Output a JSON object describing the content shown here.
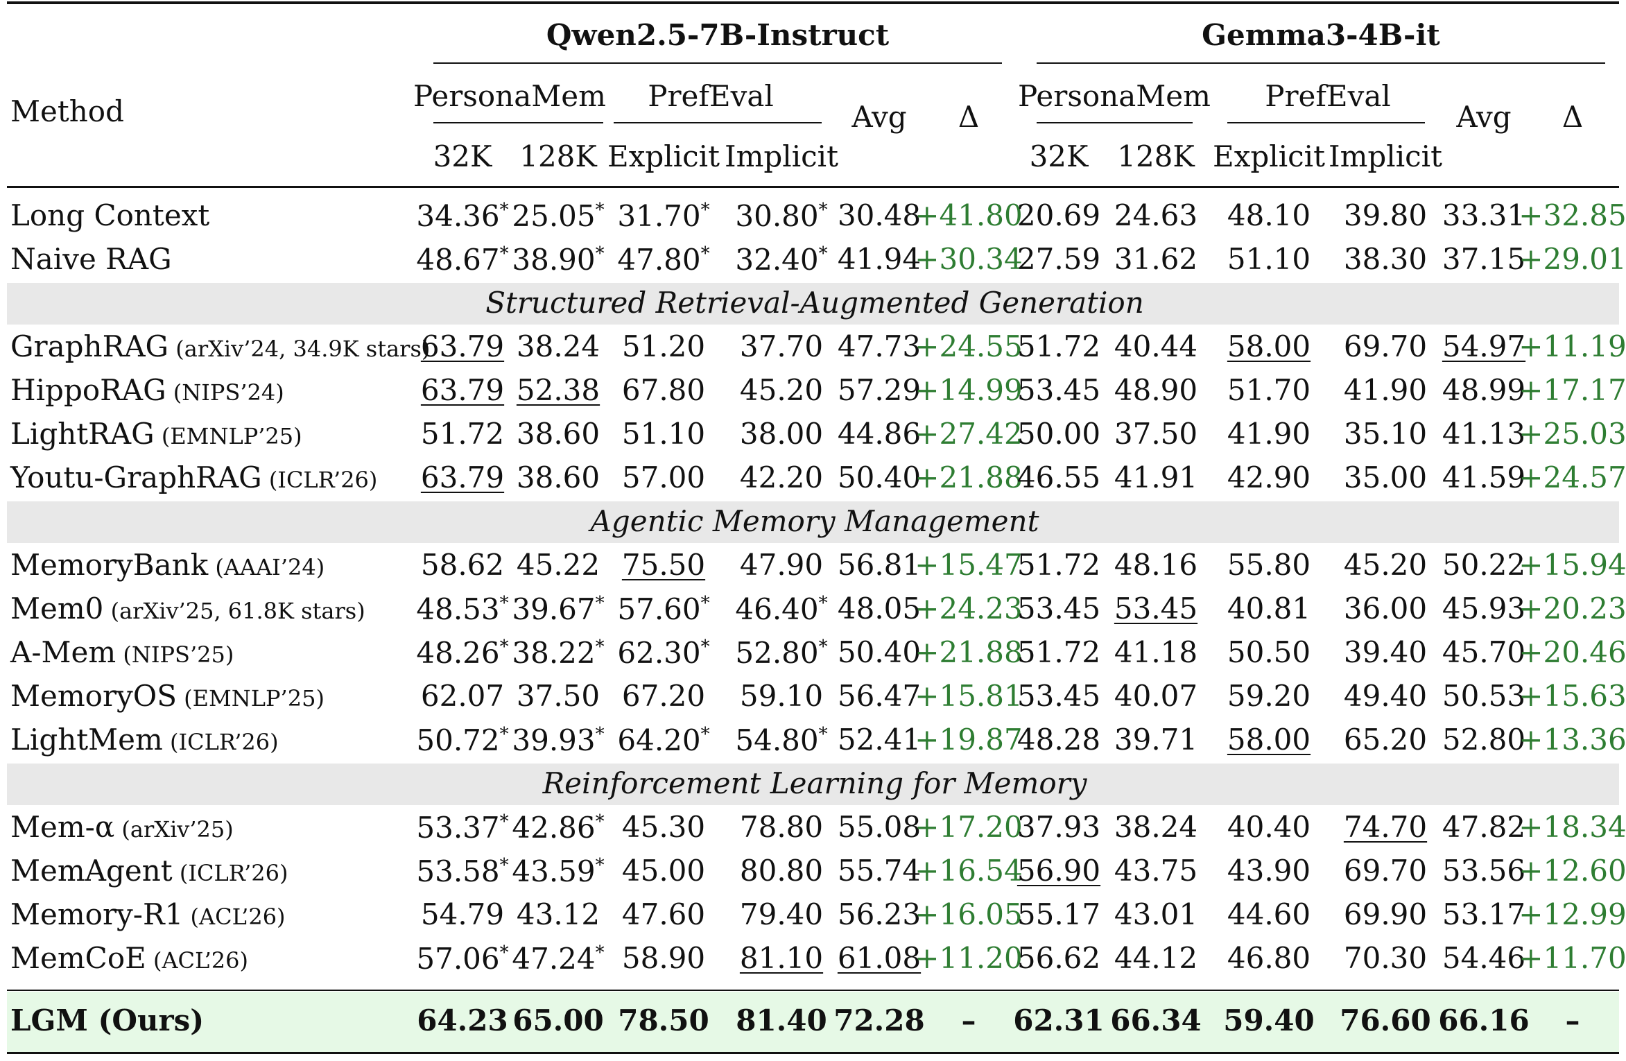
{
  "header": {
    "method": "Method",
    "groups": [
      "Qwen2.5-7B-Instruct",
      "Gemma3-4B-it"
    ],
    "sub_benchmarks": [
      "PersonaMem",
      "PrefEval"
    ],
    "avg": "Avg",
    "delta": "Δ",
    "sub_columns": [
      "32K",
      "128K",
      "Explicit",
      "Implicit"
    ]
  },
  "sections": [
    {
      "title": "",
      "rows": [
        {
          "method": "Long Context",
          "source": "",
          "cells": [
            "34.36",
            "25.05",
            "31.70",
            "30.80",
            "30.48",
            "+41.80",
            "20.69",
            "24.63",
            "48.10",
            "39.80",
            "33.31",
            "+32.85"
          ],
          "star": [
            0,
            1,
            2,
            3
          ],
          "ul": []
        },
        {
          "method": "Naive RAG",
          "source": "",
          "cells": [
            "48.67",
            "38.90",
            "47.80",
            "32.40",
            "41.94",
            "+30.34",
            "27.59",
            "31.62",
            "51.10",
            "38.30",
            "37.15",
            "+29.01"
          ],
          "star": [
            0,
            1,
            2,
            3
          ],
          "ul": []
        }
      ]
    },
    {
      "title": "Structured Retrieval-Augmented Generation",
      "rows": [
        {
          "method": "GraphRAG",
          "source": "(arXiv’24, 34.9K stars)",
          "cells": [
            "63.79",
            "38.24",
            "51.20",
            "37.70",
            "47.73",
            "+24.55",
            "51.72",
            "40.44",
            "58.00",
            "69.70",
            "54.97",
            "+11.19"
          ],
          "star": [],
          "ul": [
            0,
            8,
            10
          ]
        },
        {
          "method": "HippoRAG",
          "source": "(NIPS’24)",
          "cells": [
            "63.79",
            "52.38",
            "67.80",
            "45.20",
            "57.29",
            "+14.99",
            "53.45",
            "48.90",
            "51.70",
            "41.90",
            "48.99",
            "+17.17"
          ],
          "star": [],
          "ul": [
            0,
            1
          ]
        },
        {
          "method": "LightRAG",
          "source": "(EMNLP’25)",
          "cells": [
            "51.72",
            "38.60",
            "51.10",
            "38.00",
            "44.86",
            "+27.42",
            "50.00",
            "37.50",
            "41.90",
            "35.10",
            "41.13",
            "+25.03"
          ],
          "star": [],
          "ul": []
        },
        {
          "method": "Youtu-GraphRAG",
          "source": "(ICLR’26)",
          "cells": [
            "63.79",
            "38.60",
            "57.00",
            "42.20",
            "50.40",
            "+21.88",
            "46.55",
            "41.91",
            "42.90",
            "35.00",
            "41.59",
            "+24.57"
          ],
          "star": [],
          "ul": [
            0
          ]
        }
      ]
    },
    {
      "title": "Agentic Memory Management",
      "rows": [
        {
          "method": "MemoryBank",
          "source": "(AAAI’24)",
          "cells": [
            "58.62",
            "45.22",
            "75.50",
            "47.90",
            "56.81",
            "+15.47",
            "51.72",
            "48.16",
            "55.80",
            "45.20",
            "50.22",
            "+15.94"
          ],
          "star": [],
          "ul": [
            2
          ]
        },
        {
          "method": "Mem0",
          "source": "(arXiv’25, 61.8K stars)",
          "cells": [
            "48.53",
            "39.67",
            "57.60",
            "46.40",
            "48.05",
            "+24.23",
            "53.45",
            "53.45",
            "40.81",
            "36.00",
            "45.93",
            "+20.23"
          ],
          "star": [
            0,
            1,
            2,
            3
          ],
          "ul": [
            7
          ]
        },
        {
          "method": "A-Mem",
          "source": "(NIPS’25)",
          "cells": [
            "48.26",
            "38.22",
            "62.30",
            "52.80",
            "50.40",
            "+21.88",
            "51.72",
            "41.18",
            "50.50",
            "39.40",
            "45.70",
            "+20.46"
          ],
          "star": [
            0,
            1,
            2,
            3
          ],
          "ul": []
        },
        {
          "method": "MemoryOS",
          "source": "(EMNLP’25)",
          "cells": [
            "62.07",
            "37.50",
            "67.20",
            "59.10",
            "56.47",
            "+15.81",
            "53.45",
            "40.07",
            "59.20",
            "49.40",
            "50.53",
            "+15.63"
          ],
          "star": [],
          "ul": []
        },
        {
          "method": "LightMem",
          "source": "(ICLR’26)",
          "cells": [
            "50.72",
            "39.93",
            "64.20",
            "54.80",
            "52.41",
            "+19.87",
            "48.28",
            "39.71",
            "58.00",
            "65.20",
            "52.80",
            "+13.36"
          ],
          "star": [
            0,
            1,
            2,
            3
          ],
          "ul": [
            8
          ]
        }
      ]
    },
    {
      "title": "Reinforcement Learning for Memory",
      "rows": [
        {
          "method": "Mem-α",
          "source": "(arXiv’25)",
          "cells": [
            "53.37",
            "42.86",
            "45.30",
            "78.80",
            "55.08",
            "+17.20",
            "37.93",
            "38.24",
            "40.40",
            "74.70",
            "47.82",
            "+18.34"
          ],
          "star": [
            0,
            1
          ],
          "ul": [
            9
          ]
        },
        {
          "method": "MemAgent",
          "source": "(ICLR’26)",
          "cells": [
            "53.58",
            "43.59",
            "45.00",
            "80.80",
            "55.74",
            "+16.54",
            "56.90",
            "43.75",
            "43.90",
            "69.70",
            "53.56",
            "+12.60"
          ],
          "star": [
            0,
            1
          ],
          "ul": [
            6
          ]
        },
        {
          "method": "Memory-R1",
          "source": "(ACL’26)",
          "cells": [
            "54.79",
            "43.12",
            "47.60",
            "79.40",
            "56.23",
            "+16.05",
            "55.17",
            "43.01",
            "44.60",
            "69.90",
            "53.17",
            "+12.99"
          ],
          "star": [],
          "ul": []
        },
        {
          "method": "MemCoE",
          "source": "(ACL’26)",
          "cells": [
            "57.06",
            "47.24",
            "58.90",
            "81.10",
            "61.08",
            "+11.20",
            "56.62",
            "44.12",
            "46.80",
            "70.30",
            "54.46",
            "+11.70"
          ],
          "star": [
            0,
            1
          ],
          "ul": [
            3,
            4
          ]
        }
      ]
    }
  ],
  "ours": {
    "method": "LGM (Ours)",
    "cells": [
      "64.23",
      "65.00",
      "78.50",
      "81.40",
      "72.28",
      "–",
      "62.31",
      "66.34",
      "59.40",
      "76.60",
      "66.16",
      "–"
    ]
  },
  "star_mark": "*",
  "colors": {
    "delta_green": "#2e7d32",
    "band_gray": "#e8e8e8",
    "ours_bg": "#e6f9e6"
  }
}
